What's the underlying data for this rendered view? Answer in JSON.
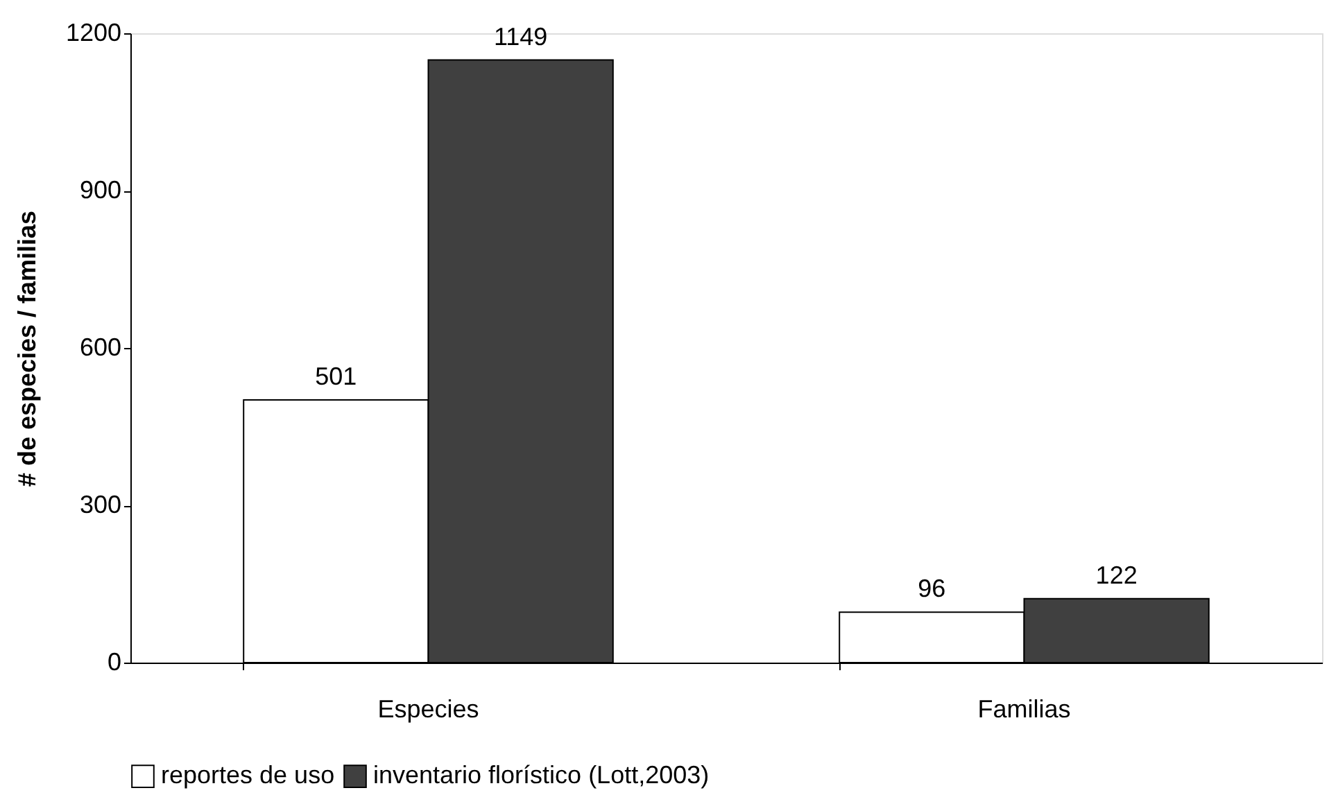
{
  "chart_data": {
    "type": "bar",
    "ylabel": "# de especies / familias",
    "categories": [
      "Especies",
      "Familias"
    ],
    "series": [
      {
        "name": "reportes de uso",
        "color": "#ffffff",
        "values": [
          501,
          96
        ]
      },
      {
        "name": "inventario florístico (Lott,2003)",
        "color": "#404040",
        "values": [
          1149,
          122
        ]
      }
    ],
    "ylim": [
      0,
      1200
    ],
    "yticks": [
      0,
      300,
      600,
      900,
      1200
    ],
    "grid": false,
    "legend": "bottom",
    "data_labels": true
  }
}
